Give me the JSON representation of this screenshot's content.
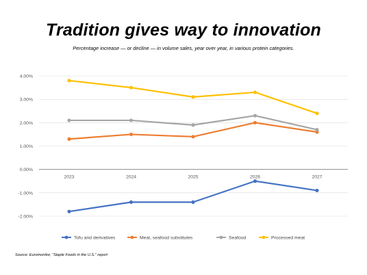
{
  "title": "Tradition gives way to innovation",
  "subtitle": "Percentage increase — or decline — in volume sales, year over year, in various protein categories.",
  "source": "Source: Euromonitor, \"Staple Foods in the U.S.\" report",
  "chart_data": {
    "type": "line",
    "x": [
      "2023",
      "2024",
      "2025",
      "2026",
      "2027"
    ],
    "ylim": [
      -0.02,
      0.04
    ],
    "yticks": [
      "4.00%",
      "3.00%",
      "2.00%",
      "1.00%",
      "0.00%",
      "-1.00%",
      "-2.00%"
    ],
    "grid": true,
    "legend_position": "bottom",
    "series": [
      {
        "name": "Tofu and derivatives",
        "color": "#4472C4",
        "values": [
          -0.018,
          -0.014,
          -0.014,
          -0.005,
          -0.009
        ]
      },
      {
        "name": "Meat, seafood substitutes",
        "color": "#ED7D31",
        "values": [
          0.013,
          0.015,
          0.014,
          0.02,
          0.016
        ]
      },
      {
        "name": "Seafood",
        "color": "#A5A5A5",
        "values": [
          0.021,
          0.021,
          0.019,
          0.023,
          0.017
        ]
      },
      {
        "name": "Processed meat",
        "color": "#FFC000",
        "values": [
          0.038,
          0.035,
          0.031,
          0.033,
          0.024
        ]
      }
    ]
  }
}
